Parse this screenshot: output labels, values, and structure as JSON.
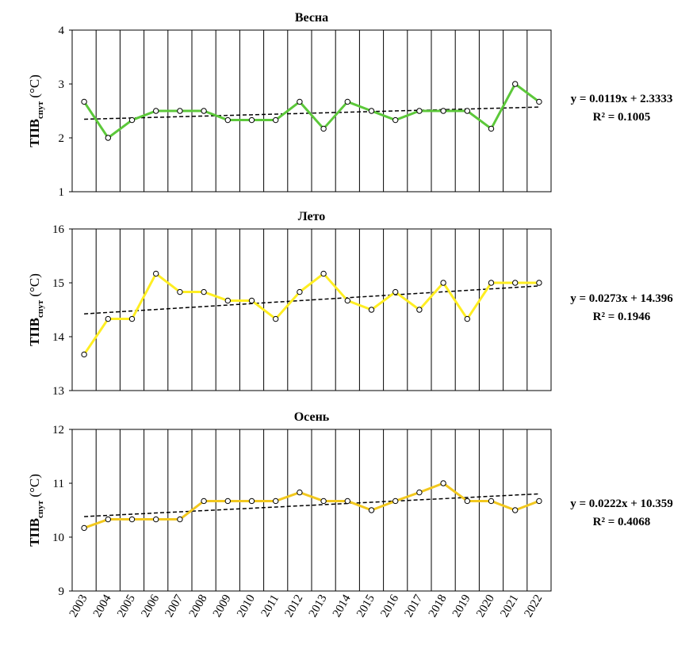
{
  "chart_data": {
    "type": "line",
    "x": [
      "2003",
      "2004",
      "2005",
      "2006",
      "2007",
      "2008",
      "2009",
      "2010",
      "2011",
      "2012",
      "2013",
      "2014",
      "2015",
      "2016",
      "2017",
      "2018",
      "2019",
      "2020",
      "2021",
      "2022"
    ],
    "ylabel_main": "ТПВ",
    "ylabel_sub": "спут",
    "ylabel_unit": " (°C)",
    "panels": [
      {
        "title": "Весна",
        "line_color": "#5cc83a",
        "ylim": [
          1,
          4
        ],
        "yticks": [
          "1",
          "2",
          "3",
          "4"
        ],
        "values": [
          2.67,
          2.0,
          2.33,
          2.5,
          2.5,
          2.5,
          2.33,
          2.33,
          2.33,
          2.67,
          2.17,
          2.67,
          2.5,
          2.33,
          2.5,
          2.5,
          2.5,
          2.17,
          3.0,
          2.67
        ],
        "trend": {
          "slope": 0.0119,
          "intercept": 2.3333
        },
        "equation": "y = 0.0119x + 2.3333",
        "r2": "R² = 0.1005"
      },
      {
        "title": "Лето",
        "line_color": "#ffee22",
        "ylim": [
          13,
          16
        ],
        "yticks": [
          "13",
          "14",
          "15",
          "16"
        ],
        "values": [
          13.67,
          14.33,
          14.33,
          15.17,
          14.83,
          14.83,
          14.67,
          14.67,
          14.33,
          14.83,
          15.17,
          14.67,
          14.5,
          14.83,
          14.5,
          15.0,
          14.33,
          15.0,
          15.0,
          15.0
        ],
        "trend": {
          "slope": 0.0273,
          "intercept": 14.396
        },
        "equation": "y = 0.0273x + 14.396",
        "r2": "R² = 0.1946"
      },
      {
        "title": "Осень",
        "line_color": "#f2c81e",
        "ylim": [
          9,
          12
        ],
        "yticks": [
          "9",
          "10",
          "11",
          "12"
        ],
        "values": [
          10.17,
          10.33,
          10.33,
          10.33,
          10.33,
          10.67,
          10.67,
          10.67,
          10.67,
          10.83,
          10.67,
          10.67,
          10.5,
          10.67,
          10.83,
          11.0,
          10.67,
          10.67,
          10.5,
          10.67
        ],
        "trend": {
          "slope": 0.0222,
          "intercept": 10.359
        },
        "equation": "y = 0.0222x + 10.359",
        "r2": "R² = 0.4068"
      }
    ]
  }
}
